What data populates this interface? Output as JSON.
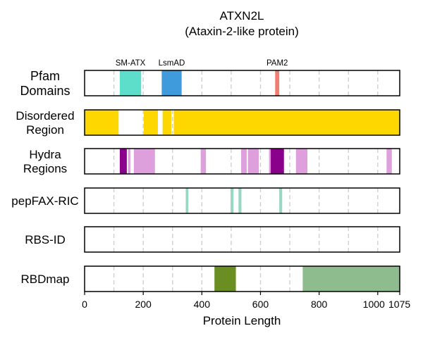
{
  "chart_data": {
    "type": "track-plot",
    "title_line1": "ATXN2L",
    "title_line2": "(Ataxin-2-like protein)",
    "xlabel": "Protein Length",
    "xlim": [
      0,
      1075
    ],
    "xticks": [
      0,
      200,
      400,
      600,
      800,
      1000,
      1075
    ],
    "grid": "dashed vertical every 100",
    "tracks": [
      {
        "label": [
          "Pfam",
          "Domains"
        ],
        "segments": [
          {
            "start": 120,
            "end": 193,
            "color": "#5DDECB",
            "name": "SM-ATX"
          },
          {
            "start": 263,
            "end": 331,
            "color": "#3F9BDB",
            "name": "LsmAD"
          },
          {
            "start": 650,
            "end": 664,
            "color": "#F27B72",
            "name": "PAM2"
          }
        ]
      },
      {
        "label": [
          "Disordered",
          "Region"
        ],
        "segments": [
          {
            "start": 0,
            "end": 116,
            "color": "#FFD700"
          },
          {
            "start": 202,
            "end": 250,
            "color": "#FFD700"
          },
          {
            "start": 266,
            "end": 296,
            "color": "#FFD700"
          },
          {
            "start": 304,
            "end": 1075,
            "color": "#FFD700"
          }
        ]
      },
      {
        "label": [
          "Hydra",
          "Regions"
        ],
        "segments": [
          {
            "start": 120,
            "end": 144,
            "color": "#8B008B"
          },
          {
            "start": 148,
            "end": 156,
            "color": "#DDA0DD"
          },
          {
            "start": 168,
            "end": 240,
            "color": "#DDA0DD"
          },
          {
            "start": 396,
            "end": 414,
            "color": "#DDA0DD"
          },
          {
            "start": 534,
            "end": 553,
            "color": "#DDA0DD"
          },
          {
            "start": 557,
            "end": 594,
            "color": "#DDA0DD"
          },
          {
            "start": 629,
            "end": 635,
            "color": "#DDA0DD"
          },
          {
            "start": 635,
            "end": 680,
            "color": "#8B008B"
          },
          {
            "start": 721,
            "end": 760,
            "color": "#DDA0DD"
          },
          {
            "start": 1030,
            "end": 1048,
            "color": "#DDA0DD"
          }
        ]
      },
      {
        "label": [
          "pepFAX-RIC"
        ],
        "segments": [
          {
            "start": 345,
            "end": 354,
            "color": "#99D8C0"
          },
          {
            "start": 498,
            "end": 508,
            "color": "#99D8C0"
          },
          {
            "start": 525,
            "end": 535,
            "color": "#99D8C0"
          },
          {
            "start": 664,
            "end": 674,
            "color": "#99D8C0"
          }
        ]
      },
      {
        "label": [
          "RBS-ID"
        ],
        "segments": []
      },
      {
        "label": [
          "RBDmap"
        ],
        "segments": [
          {
            "start": 443,
            "end": 516,
            "color": "#6B8E23"
          },
          {
            "start": 744,
            "end": 1075,
            "color": "#8FBC8F"
          }
        ]
      }
    ]
  }
}
